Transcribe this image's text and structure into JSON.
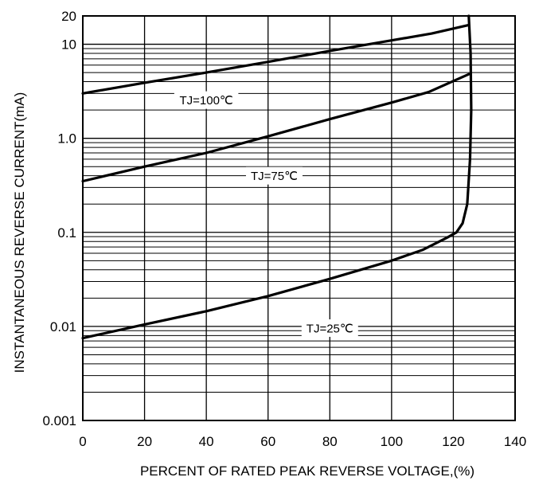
{
  "chart_data": {
    "type": "line",
    "xlabel": "PERCENT OF RATED PEAK REVERSE VOLTAGE,(%)",
    "ylabel": "INSTANTANEOUS REVERSE CURRENT(mA)",
    "xlim": [
      0,
      140
    ],
    "ylim": [
      0.001,
      20
    ],
    "y_scale": "log",
    "grid": true,
    "x_ticks": [
      "0",
      "20",
      "40",
      "60",
      "80",
      "100",
      "120",
      "140"
    ],
    "y_ticks": [
      "0.001",
      "0.01",
      "0.1",
      "1.0",
      "10",
      "20"
    ],
    "series": [
      {
        "name": "TJ=100℃",
        "x": [
          0,
          20,
          40,
          60,
          80,
          100,
          113,
          125
        ],
        "y": [
          3.0,
          3.9,
          5.0,
          6.5,
          8.5,
          11.0,
          13.0,
          16.0
        ]
      },
      {
        "name": "TJ=75℃",
        "x": [
          0,
          20,
          40,
          60,
          80,
          100,
          112,
          125
        ],
        "y": [
          0.35,
          0.5,
          0.7,
          1.05,
          1.6,
          2.4,
          3.1,
          4.8
        ]
      },
      {
        "name": "TJ=25℃",
        "x": [
          0,
          20,
          40,
          60,
          80,
          100,
          110,
          118,
          121,
          123,
          124.5,
          125.4,
          125.8,
          125.6,
          125
        ],
        "y": [
          0.0075,
          0.0105,
          0.0145,
          0.021,
          0.032,
          0.05,
          0.065,
          0.088,
          0.1,
          0.125,
          0.2,
          0.6,
          2.0,
          8.0,
          20
        ]
      }
    ]
  }
}
